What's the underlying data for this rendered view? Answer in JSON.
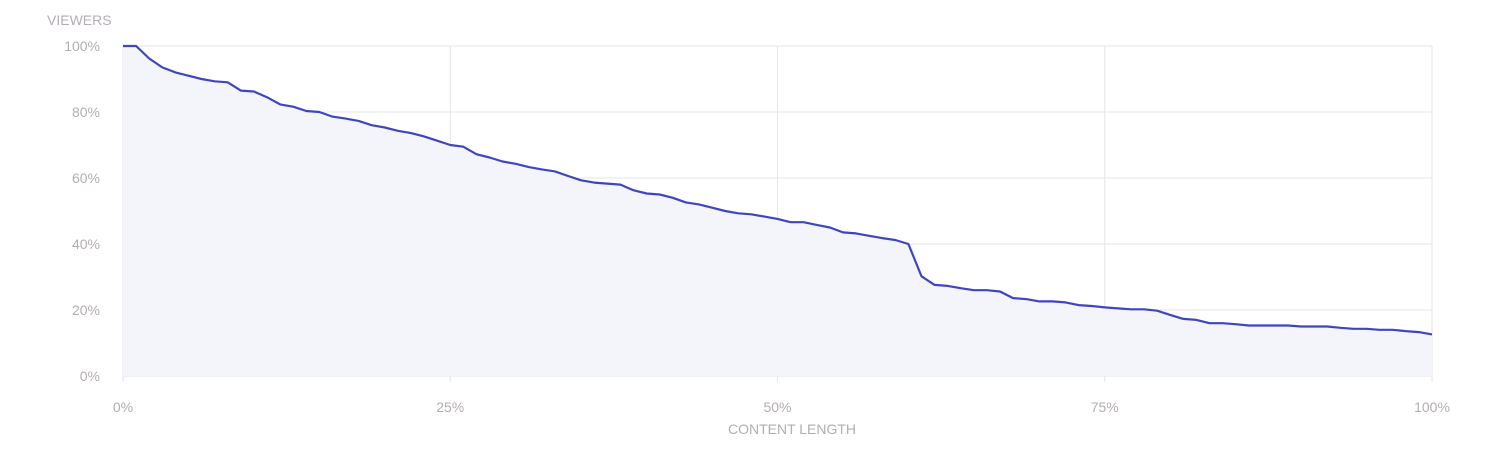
{
  "chart_data": {
    "type": "area",
    "ylabel": "VIEWERS",
    "xlabel": "CONTENT LENGTH",
    "xlim": [
      0,
      100
    ],
    "ylim": [
      0,
      100
    ],
    "x_ticks": [
      "0%",
      "25%",
      "50%",
      "75%",
      "100%"
    ],
    "x_tick_values": [
      0,
      25,
      50,
      75,
      100
    ],
    "y_ticks": [
      "0%",
      "20%",
      "40%",
      "60%",
      "80%",
      "100%"
    ],
    "y_tick_values": [
      0,
      20,
      40,
      60,
      80,
      100
    ],
    "grid": true,
    "colors": {
      "line": "#3f45bf",
      "fill": "#f4f5fb",
      "grid": "#e6e6ea",
      "label": "#b3adb3"
    },
    "series": [
      {
        "x": [
          0,
          1,
          2,
          3,
          4,
          5,
          6,
          7,
          8,
          9,
          10,
          11,
          12,
          13,
          14,
          15,
          16,
          17,
          18,
          19,
          20,
          21,
          22,
          23,
          24,
          25,
          26,
          27,
          28,
          29,
          30,
          31,
          32,
          33,
          34,
          35,
          36,
          37,
          38,
          39,
          40,
          41,
          42,
          43,
          44,
          45,
          46,
          47,
          48,
          49,
          50,
          51,
          52,
          53,
          54,
          55,
          56,
          57,
          58,
          59,
          60,
          61,
          62,
          63,
          64,
          65,
          66,
          67,
          68,
          69,
          70,
          71,
          72,
          73,
          74,
          75,
          76,
          77,
          78,
          79,
          80,
          81,
          82,
          83,
          84,
          85,
          86,
          87,
          88,
          89,
          90,
          91,
          92,
          93,
          94,
          95,
          96,
          97,
          98,
          99,
          100
        ],
        "values": [
          100,
          100,
          96.2,
          93.5,
          92,
          91,
          90,
          89.3,
          89,
          86.5,
          86.2,
          84.5,
          82.3,
          81.6,
          80.3,
          80,
          78.6,
          78,
          77.3,
          76,
          75.3,
          74.3,
          73.6,
          72.6,
          71.3,
          70,
          69.5,
          67.2,
          66.2,
          65,
          64.3,
          63.3,
          62.6,
          62,
          60.6,
          59.3,
          58.6,
          58.3,
          58,
          56.3,
          55.3,
          55,
          54,
          52.6,
          52,
          51,
          50,
          49.3,
          49,
          48.3,
          47.6,
          46.6,
          46.6,
          45.8,
          45,
          43.5,
          43.2,
          42.5,
          41.8,
          41.2,
          40,
          30.2,
          27.6,
          27.3,
          26.6,
          26,
          26,
          25.6,
          23.6,
          23.3,
          22.6,
          22.6,
          22.3,
          21.5,
          21.2,
          20.8,
          20.5,
          20.2,
          20.2,
          19.8,
          18.5,
          17.3,
          17,
          16,
          16,
          15.7,
          15.3,
          15.3,
          15.3,
          15.3,
          15,
          15,
          15,
          14.6,
          14.3,
          14.3,
          14,
          14,
          13.6,
          13.3,
          12.6
        ]
      }
    ]
  }
}
